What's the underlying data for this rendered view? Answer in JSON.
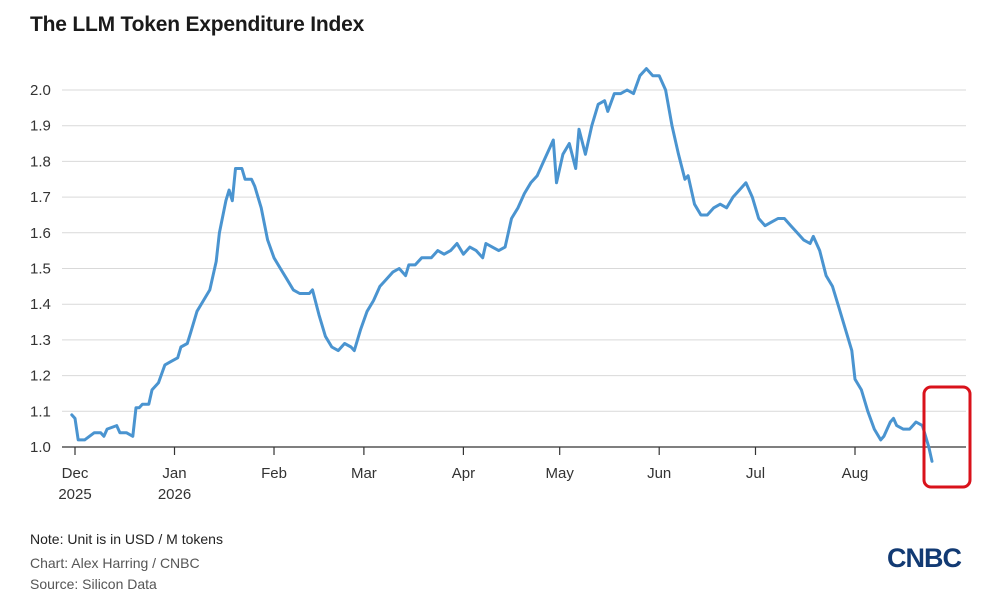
{
  "title": "The LLM Token Expenditure Index",
  "note": "Note: Unit is in USD / M tokens",
  "credit": "Chart: Alex Harring / CNBC",
  "source": "Source: Silicon Data",
  "logo_text": "CNBC",
  "colors": {
    "line": "#4a94d0",
    "grid": "#d9d9d9",
    "highlight": "#d9121b",
    "logo": "#123a73"
  },
  "chart_data": {
    "type": "line",
    "title": "The LLM Token Expenditure Index",
    "xlabel": "",
    "ylabel": "",
    "ylim": [
      1.0,
      2.0
    ],
    "yticks": [
      "2.0",
      "1.9",
      "1.8",
      "1.7",
      "1.6",
      "1.5",
      "1.4",
      "1.3",
      "1.2",
      "1.1",
      "1.0"
    ],
    "xticks": [
      {
        "date": "2025-12-01",
        "label": "Dec",
        "label2": "2025"
      },
      {
        "date": "2026-01-01",
        "label": "Jan",
        "label2": "2026"
      },
      {
        "date": "2026-02-01",
        "label": "Feb"
      },
      {
        "date": "2026-03-01",
        "label": "Mar"
      },
      {
        "date": "2026-04-01",
        "label": "Apr"
      },
      {
        "date": "2026-05-01",
        "label": "May"
      },
      {
        "date": "2026-06-01",
        "label": "Jun"
      },
      {
        "date": "2026-07-01",
        "label": "Jul"
      },
      {
        "date": "2026-08-01",
        "label": "Aug"
      }
    ],
    "grid": true,
    "highlight_box": "latest values circled in red",
    "series": [
      {
        "points": [
          [
            "2025-11-30",
            1.09
          ],
          [
            "2025-12-01",
            1.08
          ],
          [
            "2025-12-02",
            1.02
          ],
          [
            "2025-12-04",
            1.02
          ],
          [
            "2025-12-07",
            1.04
          ],
          [
            "2025-12-09",
            1.04
          ],
          [
            "2025-12-10",
            1.03
          ],
          [
            "2025-12-11",
            1.05
          ],
          [
            "2025-12-14",
            1.06
          ],
          [
            "2025-12-15",
            1.04
          ],
          [
            "2025-12-17",
            1.04
          ],
          [
            "2025-12-19",
            1.03
          ],
          [
            "2025-12-20",
            1.11
          ],
          [
            "2025-12-21",
            1.11
          ],
          [
            "2025-12-22",
            1.12
          ],
          [
            "2025-12-24",
            1.12
          ],
          [
            "2025-12-25",
            1.16
          ],
          [
            "2025-12-27",
            1.18
          ],
          [
            "2025-12-29",
            1.23
          ],
          [
            "2025-12-31",
            1.24
          ],
          [
            "2026-01-02",
            1.25
          ],
          [
            "2026-01-03",
            1.28
          ],
          [
            "2026-01-05",
            1.29
          ],
          [
            "2026-01-06",
            1.32
          ],
          [
            "2026-01-08",
            1.38
          ],
          [
            "2026-01-10",
            1.41
          ],
          [
            "2026-01-12",
            1.44
          ],
          [
            "2026-01-14",
            1.52
          ],
          [
            "2026-01-15",
            1.6
          ],
          [
            "2026-01-17",
            1.69
          ],
          [
            "2026-01-18",
            1.72
          ],
          [
            "2026-01-19",
            1.69
          ],
          [
            "2026-01-20",
            1.78
          ],
          [
            "2026-01-22",
            1.78
          ],
          [
            "2026-01-23",
            1.75
          ],
          [
            "2026-01-25",
            1.75
          ],
          [
            "2026-01-26",
            1.73
          ],
          [
            "2026-01-28",
            1.67
          ],
          [
            "2026-01-30",
            1.58
          ],
          [
            "2026-02-01",
            1.53
          ],
          [
            "2026-02-03",
            1.5
          ],
          [
            "2026-02-05",
            1.47
          ],
          [
            "2026-02-07",
            1.44
          ],
          [
            "2026-02-09",
            1.43
          ],
          [
            "2026-02-12",
            1.43
          ],
          [
            "2026-02-13",
            1.44
          ],
          [
            "2026-02-15",
            1.37
          ],
          [
            "2026-02-17",
            1.31
          ],
          [
            "2026-02-19",
            1.28
          ],
          [
            "2026-02-21",
            1.27
          ],
          [
            "2026-02-23",
            1.29
          ],
          [
            "2026-02-25",
            1.28
          ],
          [
            "2026-02-26",
            1.27
          ],
          [
            "2026-02-28",
            1.33
          ],
          [
            "2026-03-02",
            1.38
          ],
          [
            "2026-03-04",
            1.41
          ],
          [
            "2026-03-06",
            1.45
          ],
          [
            "2026-03-08",
            1.47
          ],
          [
            "2026-03-10",
            1.49
          ],
          [
            "2026-03-12",
            1.5
          ],
          [
            "2026-03-14",
            1.48
          ],
          [
            "2026-03-15",
            1.51
          ],
          [
            "2026-03-17",
            1.51
          ],
          [
            "2026-03-19",
            1.53
          ],
          [
            "2026-03-22",
            1.53
          ],
          [
            "2026-03-24",
            1.55
          ],
          [
            "2026-03-26",
            1.54
          ],
          [
            "2026-03-28",
            1.55
          ],
          [
            "2026-03-30",
            1.57
          ],
          [
            "2026-04-01",
            1.54
          ],
          [
            "2026-04-03",
            1.56
          ],
          [
            "2026-04-05",
            1.55
          ],
          [
            "2026-04-07",
            1.53
          ],
          [
            "2026-04-08",
            1.57
          ],
          [
            "2026-04-10",
            1.56
          ],
          [
            "2026-04-12",
            1.55
          ],
          [
            "2026-04-14",
            1.56
          ],
          [
            "2026-04-15",
            1.6
          ],
          [
            "2026-04-16",
            1.64
          ],
          [
            "2026-04-18",
            1.67
          ],
          [
            "2026-04-20",
            1.71
          ],
          [
            "2026-04-22",
            1.74
          ],
          [
            "2026-04-24",
            1.76
          ],
          [
            "2026-04-26",
            1.8
          ],
          [
            "2026-04-28",
            1.84
          ],
          [
            "2026-04-29",
            1.86
          ],
          [
            "2026-04-30",
            1.74
          ],
          [
            "2026-05-02",
            1.82
          ],
          [
            "2026-05-04",
            1.85
          ],
          [
            "2026-05-06",
            1.78
          ],
          [
            "2026-05-07",
            1.89
          ],
          [
            "2026-05-09",
            1.82
          ],
          [
            "2026-05-11",
            1.9
          ],
          [
            "2026-05-13",
            1.96
          ],
          [
            "2026-05-15",
            1.97
          ],
          [
            "2026-05-16",
            1.94
          ],
          [
            "2026-05-18",
            1.99
          ],
          [
            "2026-05-20",
            1.99
          ],
          [
            "2026-05-22",
            2.0
          ],
          [
            "2026-05-24",
            1.99
          ],
          [
            "2026-05-26",
            2.04
          ],
          [
            "2026-05-28",
            2.06
          ],
          [
            "2026-05-30",
            2.04
          ],
          [
            "2026-06-01",
            2.04
          ],
          [
            "2026-06-03",
            2.0
          ],
          [
            "2026-06-05",
            1.9
          ],
          [
            "2026-06-07",
            1.82
          ],
          [
            "2026-06-09",
            1.75
          ],
          [
            "2026-06-10",
            1.76
          ],
          [
            "2026-06-12",
            1.68
          ],
          [
            "2026-06-14",
            1.65
          ],
          [
            "2026-06-16",
            1.65
          ],
          [
            "2026-06-18",
            1.67
          ],
          [
            "2026-06-20",
            1.68
          ],
          [
            "2026-06-22",
            1.67
          ],
          [
            "2026-06-24",
            1.7
          ],
          [
            "2026-06-26",
            1.72
          ],
          [
            "2026-06-28",
            1.74
          ],
          [
            "2026-06-30",
            1.7
          ],
          [
            "2026-07-02",
            1.64
          ],
          [
            "2026-07-04",
            1.62
          ],
          [
            "2026-07-06",
            1.63
          ],
          [
            "2026-07-08",
            1.64
          ],
          [
            "2026-07-10",
            1.64
          ],
          [
            "2026-07-12",
            1.62
          ],
          [
            "2026-07-14",
            1.6
          ],
          [
            "2026-07-16",
            1.58
          ],
          [
            "2026-07-18",
            1.57
          ],
          [
            "2026-07-19",
            1.59
          ],
          [
            "2026-07-21",
            1.55
          ],
          [
            "2026-07-23",
            1.48
          ],
          [
            "2026-07-25",
            1.45
          ],
          [
            "2026-07-27",
            1.39
          ],
          [
            "2026-07-29",
            1.33
          ],
          [
            "2026-07-31",
            1.27
          ],
          [
            "2026-08-01",
            1.19
          ],
          [
            "2026-08-03",
            1.16
          ],
          [
            "2026-08-05",
            1.1
          ],
          [
            "2026-08-07",
            1.05
          ],
          [
            "2026-08-09",
            1.02
          ],
          [
            "2026-08-10",
            1.03
          ],
          [
            "2026-08-12",
            1.07
          ],
          [
            "2026-08-13",
            1.08
          ],
          [
            "2026-08-14",
            1.06
          ],
          [
            "2026-08-16",
            1.05
          ],
          [
            "2026-08-18",
            1.05
          ],
          [
            "2026-08-19",
            1.06
          ],
          [
            "2026-08-20",
            1.07
          ],
          [
            "2026-08-22",
            1.06
          ],
          [
            "2026-08-24",
            1.0
          ],
          [
            "2026-08-25",
            0.96
          ]
        ]
      }
    ]
  }
}
